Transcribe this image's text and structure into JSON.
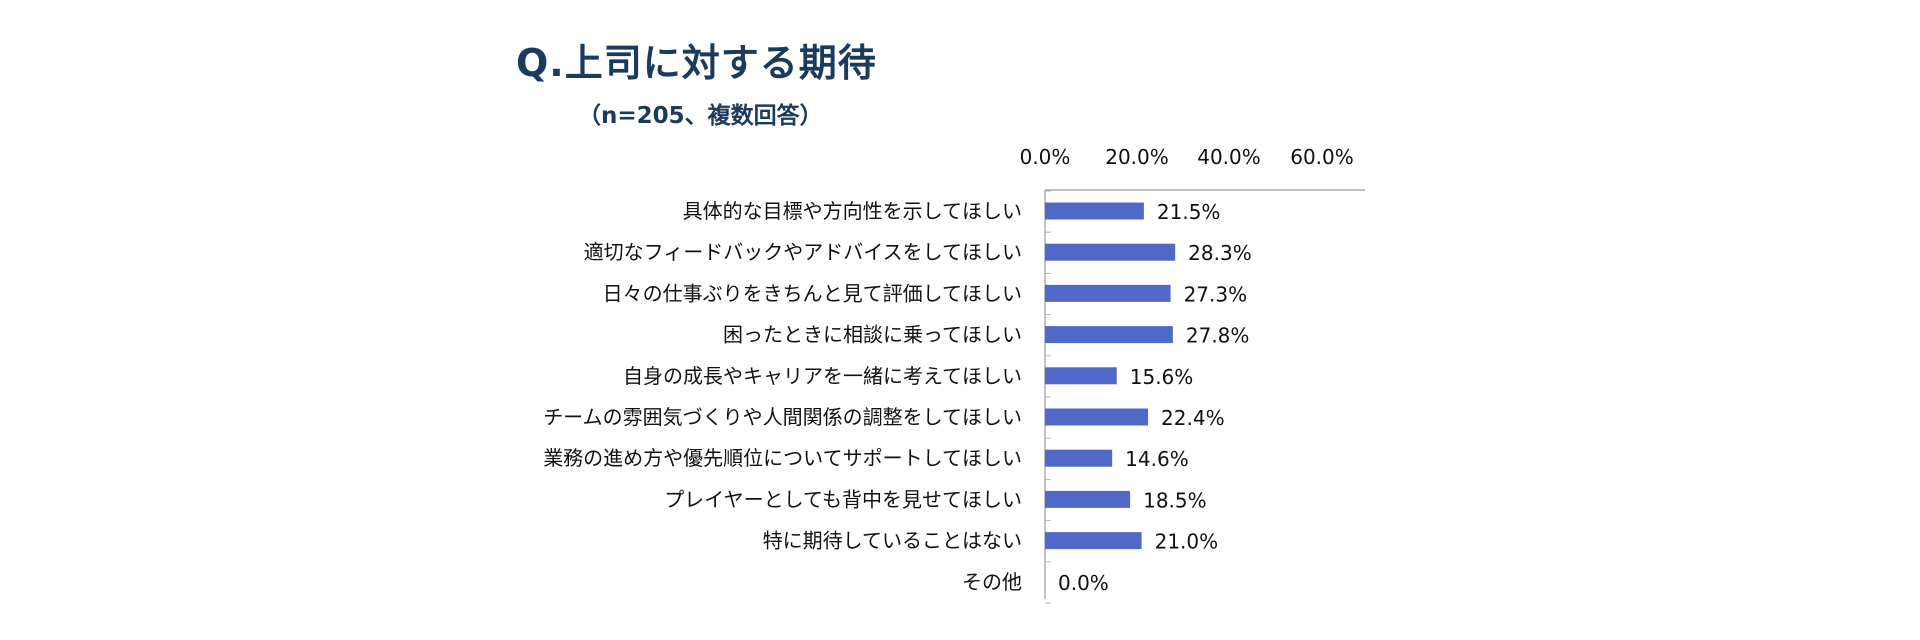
{
  "title": "Q.上司に対する期待",
  "subtitle": "（n=205、複数回答）",
  "chart_data": {
    "type": "bar",
    "orientation": "horizontal",
    "x_axis_position": "top",
    "x_ticks": [
      "0.0%",
      "20.0%",
      "40.0%",
      "60.0%"
    ],
    "xlim": [
      0,
      60
    ],
    "grid": false,
    "bar_color": "#5068c8",
    "categories": [
      "具体的な目標や方向性を示してほしい",
      "適切なフィードバックやアドバイスをしてほしい",
      "日々の仕事ぶりをきちんと見て評価してほしい",
      "困ったときに相談に乗ってほしい",
      "自身の成長やキャリアを一緒に考えてほしい",
      "チームの雰囲気づくりや人間関係の調整をしてほしい",
      "業務の進め方や優先順位についてサポートしてほしい",
      "プレイヤーとしても背中を見せてほしい",
      "特に期待していることはない",
      "その他"
    ],
    "values": [
      21.5,
      28.3,
      27.3,
      27.8,
      15.6,
      22.4,
      14.6,
      18.5,
      21.0,
      0.0
    ],
    "value_labels": [
      "21.5%",
      "28.3%",
      "27.3%",
      "27.8%",
      "15.6%",
      "22.4%",
      "14.6%",
      "18.5%",
      "21.0%",
      "0.0%"
    ]
  }
}
